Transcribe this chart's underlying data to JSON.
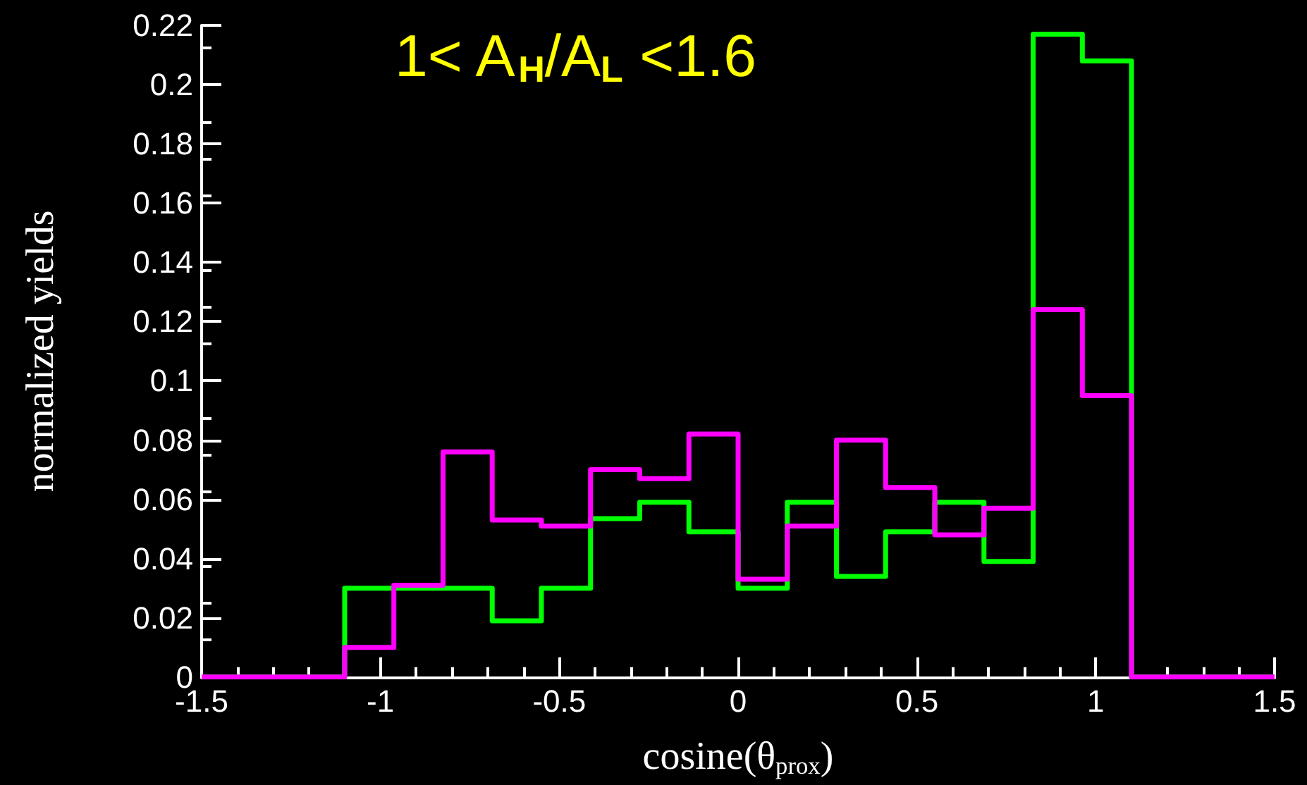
{
  "chart_data": {
    "type": "histogram",
    "title": "1< A$_{H}$/A$_{L}$ <1.6",
    "xlabel": "cosine(θ$_{prox}$)",
    "ylabel": "normalized yields",
    "bins": [
      -1.5,
      -1.1,
      -0.9625,
      -0.825,
      -0.6875,
      -0.55,
      -0.4125,
      -0.275,
      -0.1375,
      0,
      0.1375,
      0.275,
      0.4125,
      0.55,
      0.6875,
      0.825,
      0.9625,
      1.1,
      1.5
    ],
    "series": [
      {
        "color": "#00ff00",
        "values": [
          0,
          0.03,
          0.03,
          0.03,
          0.019,
          0.03,
          0.0535,
          0.059,
          0.049,
          0.03,
          0.059,
          0.034,
          0.049,
          0.059,
          0.039,
          0.217,
          0.208,
          0
        ]
      },
      {
        "color": "#ff00ff",
        "values": [
          0,
          0.01,
          0.031,
          0.076,
          0.053,
          0.051,
          0.07,
          0.067,
          0.082,
          0.033,
          0.051,
          0.08,
          0.064,
          0.048,
          0.057,
          0.124,
          0.095,
          0
        ]
      }
    ],
    "xlim": [
      -1.5,
      1.5
    ],
    "xticks": [
      -1.5,
      -1,
      -0.5,
      0,
      0.5,
      1,
      1.5
    ],
    "ylim": [
      0,
      0.22
    ],
    "yticks": [
      0,
      0.02,
      0.04,
      0.06,
      0.08,
      0.1,
      0.12,
      0.14,
      0.16,
      0.18,
      0.2,
      0.22
    ],
    "grid": false
  }
}
